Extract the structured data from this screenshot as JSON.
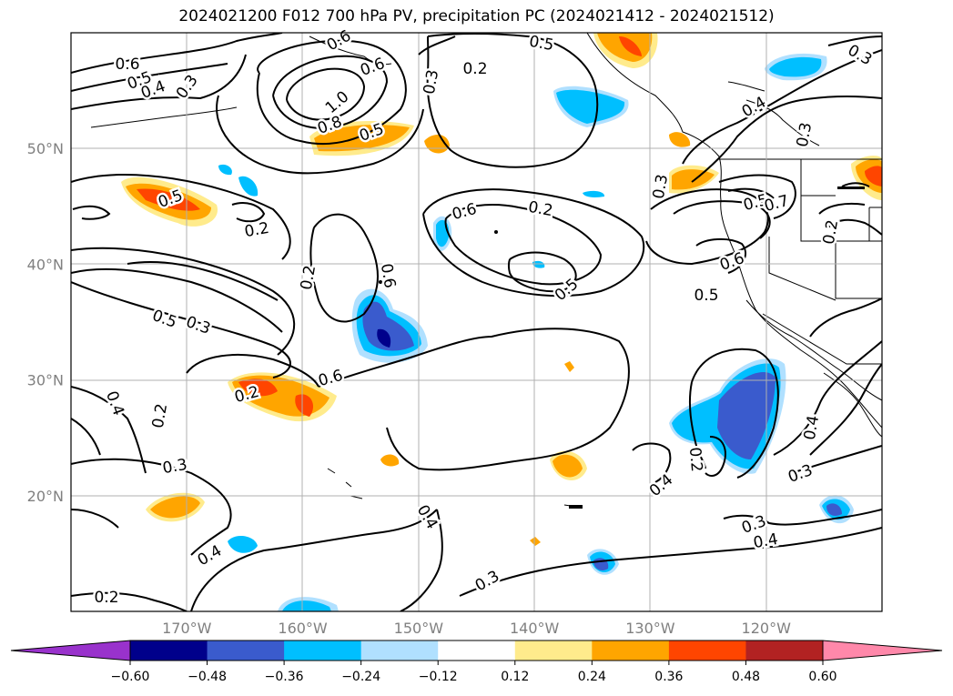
{
  "title": "2024021200 F012 700 hPa PV, precipitation PC (2024021412 - 2024021512)",
  "map": {
    "lat_labels": [
      {
        "label": "50°N",
        "lat": 50
      },
      {
        "label": "40°N",
        "lat": 40
      },
      {
        "label": "30°N",
        "lat": 30
      },
      {
        "label": "20°N",
        "lat": 20
      }
    ],
    "lon_labels": [
      {
        "label": "170°W",
        "lon": -170
      },
      {
        "label": "160°W",
        "lon": -160
      },
      {
        "label": "150°W",
        "lon": -150
      },
      {
        "label": "140°W",
        "lon": -140
      },
      {
        "label": "130°W",
        "lon": -130
      },
      {
        "label": "120°W",
        "lon": -120
      }
    ],
    "extent": {
      "lon_min": -180,
      "lon_max": -110,
      "lat_min": 10,
      "lat_max": 60
    },
    "pv_contour_labels": [
      "0.6",
      "0.5",
      "0.4",
      "0.3",
      "1.0",
      "0.8",
      "0.5",
      "0.6",
      "0.2",
      "0.3",
      "0.5",
      "0.3",
      "0.4",
      "0.6",
      "0.2",
      "0.2",
      "0.6",
      "0.5",
      "0.5",
      "0.7",
      "0.6",
      "0.5",
      "0.2",
      "0.3",
      "0.5",
      "0.3",
      "0.2",
      "0.6",
      "0.4",
      "0.2",
      "0.3",
      "0.4",
      "0.4",
      "0.2",
      "0.3",
      "0.4",
      "0.3",
      "0.4",
      "0.4",
      "0.3",
      "0.2",
      "0.2",
      "0.3",
      "0.5",
      "0.6"
    ]
  },
  "colorbar": {
    "tick_labels": [
      "−0.60",
      "−0.48",
      "−0.36",
      "−0.24",
      "−0.12",
      "0.12",
      "0.24",
      "0.36",
      "0.48",
      "0.60"
    ],
    "colors": [
      "#9932cc",
      "#00008b",
      "#3a5bcd",
      "#00bfff",
      "#b0e0ff",
      "#ffffff",
      "#ffeb8c",
      "#ffa500",
      "#ff4500",
      "#b22222",
      "#ff88aa"
    ]
  }
}
